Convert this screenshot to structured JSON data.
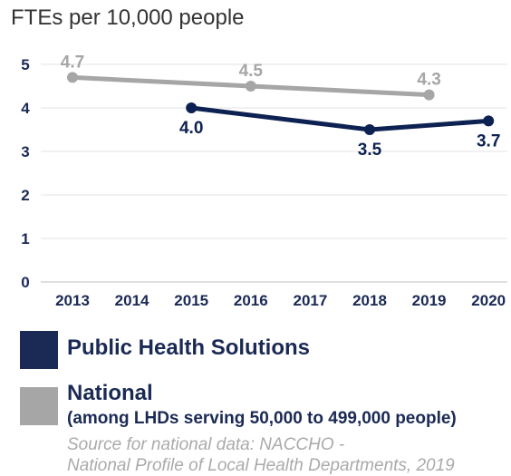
{
  "chart_data": {
    "type": "line",
    "title": "FTEs per 10,000 people",
    "x": [
      "2013",
      "2014",
      "2015",
      "2016",
      "2017",
      "2018",
      "2019",
      "2020"
    ],
    "ylim": [
      0,
      5
    ],
    "yticks": [
      "0",
      "1",
      "2",
      "3",
      "4",
      "5"
    ],
    "grid": true,
    "series": [
      {
        "name": "Public Health Solutions",
        "color": "#0d2152",
        "points": [
          {
            "x": "2015",
            "y": 4.0,
            "label": "4.0"
          },
          {
            "x": "2018",
            "y": 3.5,
            "label": "3.5"
          },
          {
            "x": "2020",
            "y": 3.7,
            "label": "3.7"
          }
        ]
      },
      {
        "name": "National",
        "color": "#a6a6a6",
        "points": [
          {
            "x": "2013",
            "y": 4.7,
            "label": "4.7"
          },
          {
            "x": "2016",
            "y": 4.5,
            "label": "4.5"
          },
          {
            "x": "2019",
            "y": 4.3,
            "label": "4.3"
          }
        ]
      }
    ]
  },
  "legend": {
    "items": [
      {
        "label": "Public Health Solutions",
        "color": "#1b2a55"
      },
      {
        "label": "National",
        "sublabel": "(among LHDs serving 50,000 to 499,000 people)",
        "color": "#a6a6a6"
      }
    ]
  },
  "source": {
    "line1": "Source for national data: NACCHO -",
    "line2": "National Profile of Local Health Departments, 2019"
  }
}
